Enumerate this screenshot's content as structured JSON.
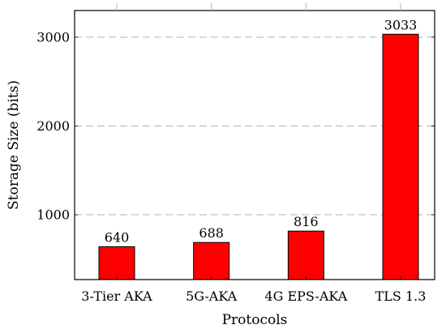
{
  "chart_data": {
    "type": "bar",
    "title": "",
    "xlabel": "Protocols",
    "ylabel": "Storage Size (bits)",
    "categories": [
      "3-Tier AKA",
      "5G-AKA",
      "4G EPS-AKA",
      "TLS 1.3"
    ],
    "values": [
      640,
      688,
      816,
      3033
    ],
    "data_labels": [
      "640",
      "688",
      "816",
      "3033"
    ],
    "ylim": [
      270,
      3300
    ],
    "yticks": [
      1000,
      2000,
      3000
    ],
    "ytick_labels": [
      "1000",
      "2000",
      "3000"
    ],
    "grid": true,
    "grid_axis": "y",
    "bar_color": "#ff0000",
    "bar_edge_color": "#000000",
    "grid_color": "#b3b3b3"
  }
}
